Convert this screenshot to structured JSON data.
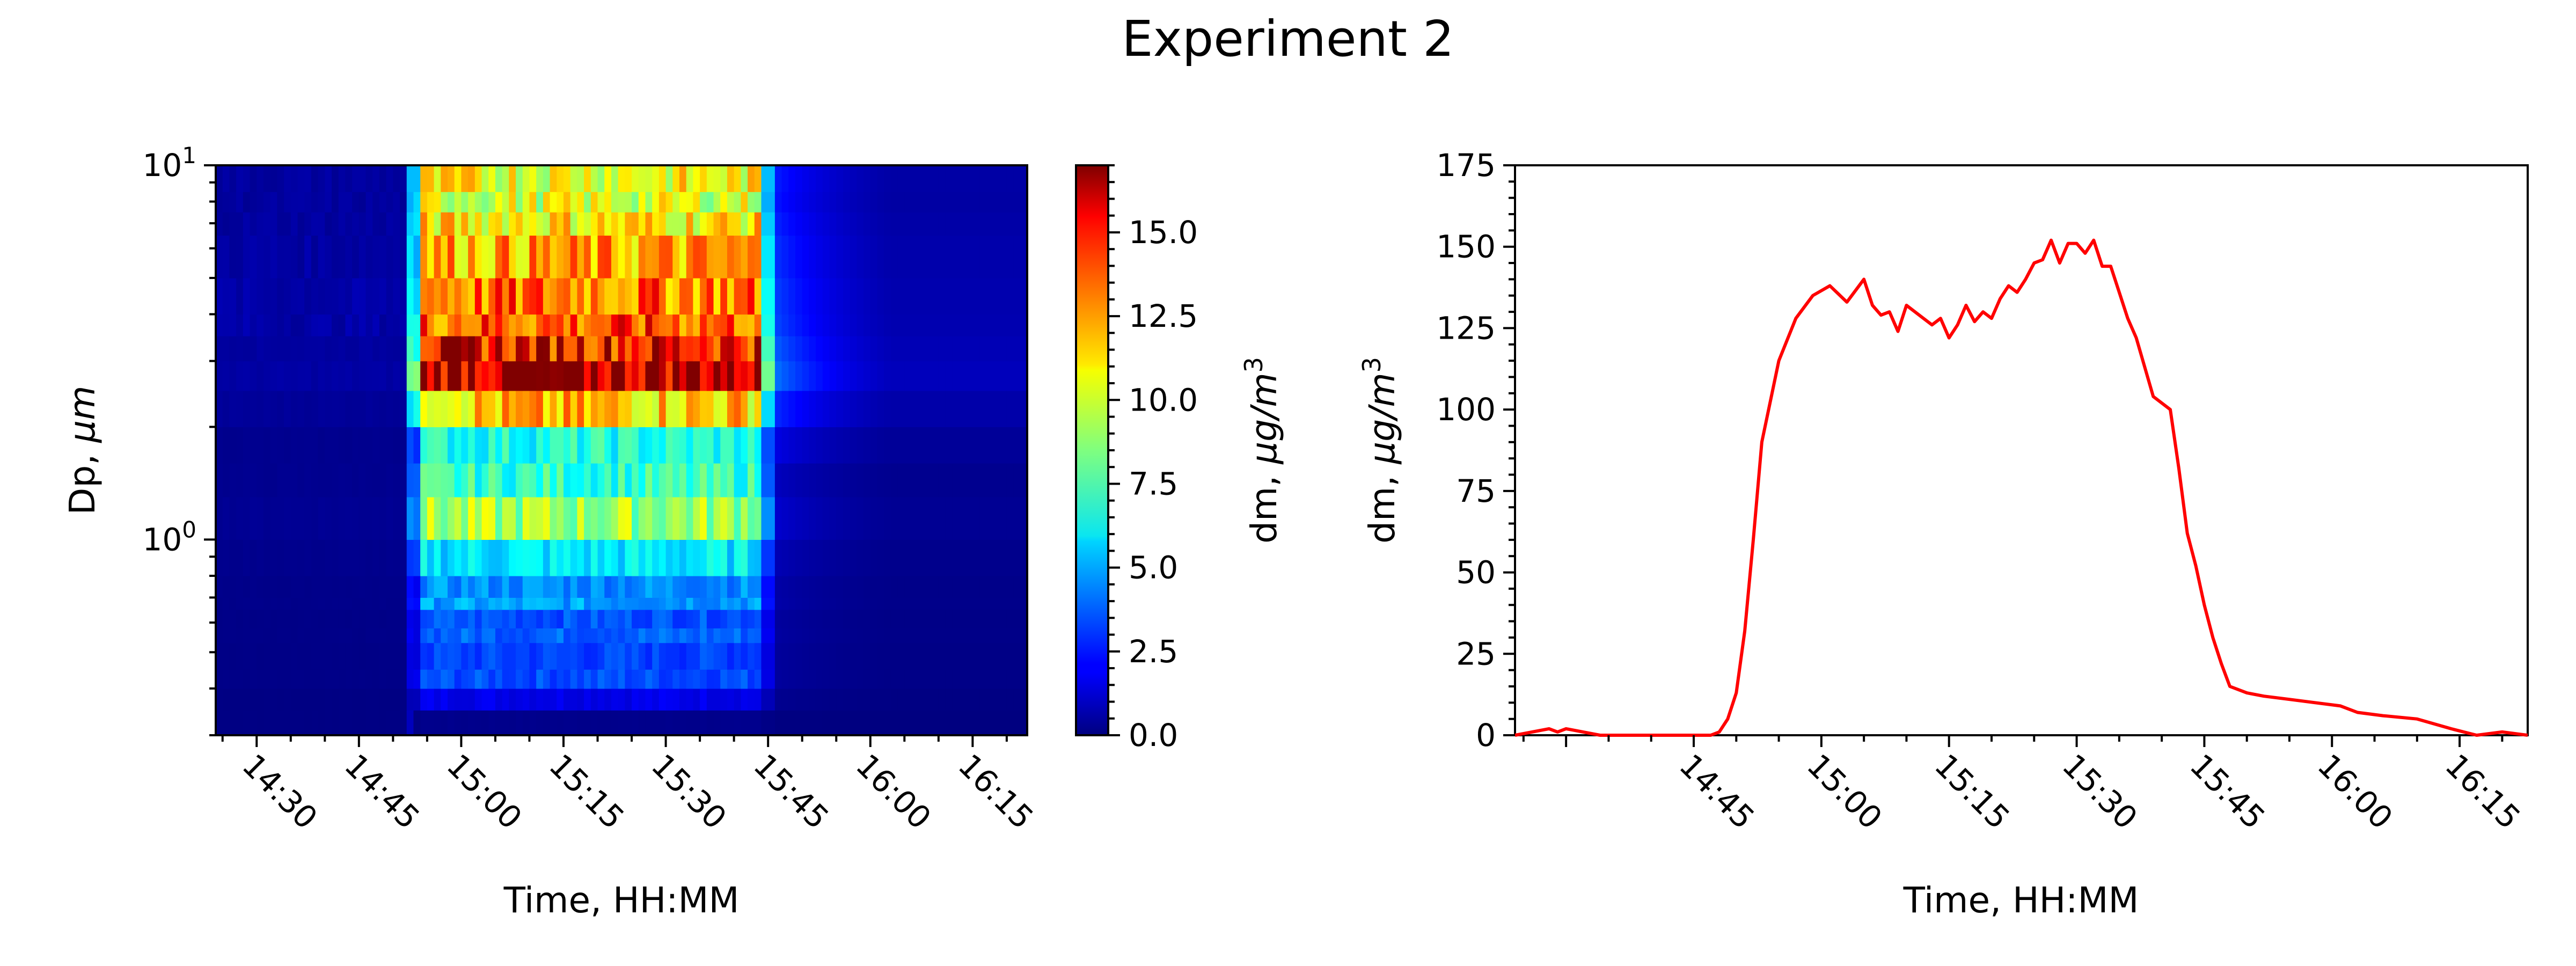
{
  "figure": {
    "title": "Experiment 2"
  },
  "chart_data": [
    {
      "type": "heatmap",
      "title": "",
      "xlabel": "Time, HH:MM",
      "ylabel_text": "Dp, ",
      "ylabel_unit": "μm",
      "yscale": "log",
      "ylim": [
        0.3,
        10
      ],
      "xlim": [
        "14:24",
        "16:23"
      ],
      "x_tick_labels": [
        "14:30",
        "14:45",
        "15:00",
        "15:15",
        "15:30",
        "15:45",
        "16:00",
        "16:15"
      ],
      "y_tick_labels": [
        {
          "base": "10",
          "exp": "0",
          "value": 1
        },
        {
          "base": "10",
          "exp": "1",
          "value": 10
        }
      ],
      "colormap": "jet",
      "colorbar": {
        "label_text": "dm, ",
        "label_unit": "μg/m",
        "label_sup": "3",
        "range": [
          0,
          17
        ],
        "tick_labels": [
          "0.0",
          "2.5",
          "5.0",
          "7.5",
          "10.0",
          "12.5",
          "15.0"
        ]
      },
      "x_time_start": "14:24",
      "x_time_end": "16:23",
      "plume_start": "14:53",
      "plume_end": "15:44",
      "size_bins_um": [
        0.3,
        0.35,
        0.4,
        0.45,
        0.53,
        0.58,
        0.65,
        0.7,
        0.8,
        1.0,
        1.3,
        1.6,
        2.0,
        2.5,
        3.0,
        3.5,
        4.0,
        5.0,
        6.5,
        7.5,
        8.5,
        10.0
      ],
      "bin_peak_values": [
        2.0,
        1.8,
        3.4,
        3.2,
        3.8,
        3.5,
        4.8,
        4.5,
        6.0,
        9.0,
        7.2,
        6.8,
        11.5,
        16.5,
        15.0,
        13.5,
        13.0,
        12.0,
        11.0,
        10.0,
        10.5,
        11.5
      ]
    },
    {
      "type": "line",
      "title": "",
      "xlabel": "Time, HH:MM",
      "ylabel_text": "dm, ",
      "ylabel_unit": "μg/m",
      "ylabel_sup": "3",
      "color": "#ff0000",
      "xlim": [
        "14:24",
        "16:23"
      ],
      "ylim": [
        0,
        175
      ],
      "x_tick_labels": [
        "14:45",
        "15:00",
        "15:15",
        "15:30",
        "15:45",
        "16:00",
        "16:15"
      ],
      "y_tick_labels": [
        "0",
        "25",
        "50",
        "75",
        "100",
        "125",
        "150",
        "175"
      ],
      "series": [
        {
          "x": [
            "14:24",
            "14:28",
            "14:29",
            "14:30",
            "14:32",
            "14:34",
            "14:36",
            "14:40",
            "14:44",
            "14:47",
            "14:48",
            "14:49",
            "14:50",
            "14:51",
            "14:52",
            "14:53",
            "14:55",
            "14:57",
            "14:59",
            "15:01",
            "15:03",
            "15:05",
            "15:06",
            "15:07",
            "15:08",
            "15:09",
            "15:10",
            "15:11",
            "15:12",
            "15:13",
            "15:14",
            "15:15",
            "15:16",
            "15:17",
            "15:18",
            "15:19",
            "15:20",
            "15:21",
            "15:22",
            "15:23",
            "15:24",
            "15:25",
            "15:26",
            "15:27",
            "15:28",
            "15:29",
            "15:30",
            "15:31",
            "15:32",
            "15:33",
            "15:34",
            "15:35",
            "15:36",
            "15:37",
            "15:39",
            "15:41",
            "15:42",
            "15:43",
            "15:44",
            "15:45",
            "15:46",
            "15:47",
            "15:48",
            "15:50",
            "15:52",
            "15:55",
            "15:58",
            "16:01",
            "16:03",
            "16:06",
            "16:10",
            "16:14",
            "16:17",
            "16:20",
            "16:23"
          ],
          "values": [
            0,
            2,
            1,
            2,
            1,
            0,
            0,
            0,
            0,
            0,
            1,
            5,
            13,
            32,
            60,
            90,
            115,
            128,
            135,
            138,
            133,
            140,
            132,
            129,
            130,
            124,
            132,
            130,
            128,
            126,
            128,
            122,
            126,
            132,
            127,
            130,
            128,
            134,
            138,
            136,
            140,
            145,
            146,
            152,
            145,
            151,
            151,
            148,
            152,
            144,
            144,
            136,
            128,
            122,
            104,
            100,
            82,
            62,
            52,
            40,
            30,
            22,
            15,
            13,
            12,
            11,
            10,
            9,
            7,
            6,
            5,
            2,
            0,
            1,
            0
          ]
        }
      ]
    }
  ]
}
